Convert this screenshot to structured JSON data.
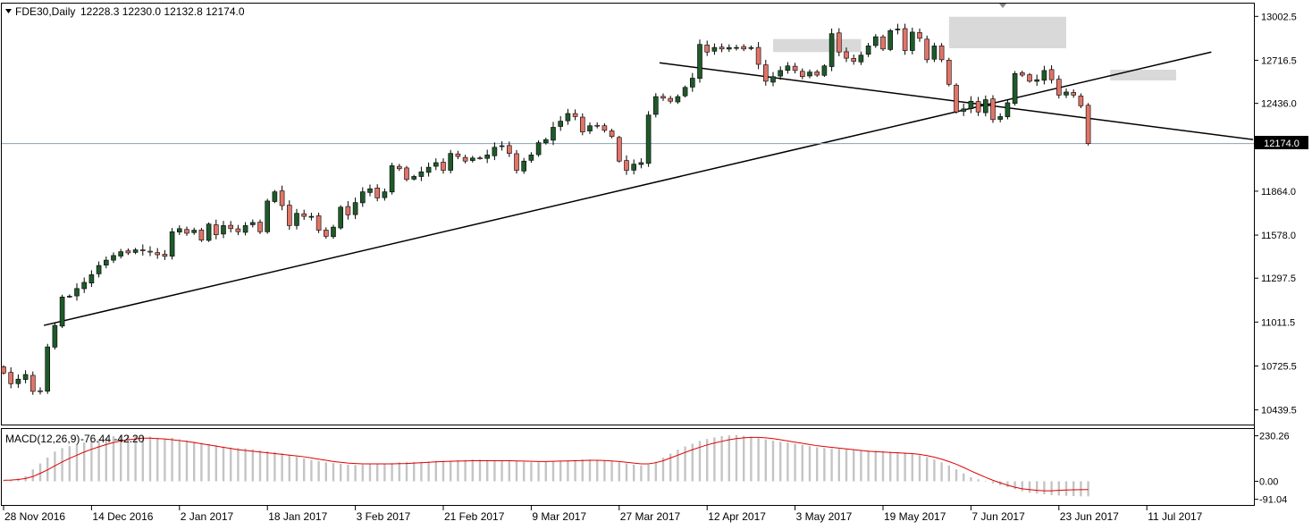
{
  "header": {
    "symbol_label": "FDE30,Daily",
    "ohlc_values": "12228.3 12230.0 12132.8 12174.0"
  },
  "indicator": {
    "label": "MACD(12,26,9)",
    "values": "-76.44 -42.20"
  },
  "colors": {
    "bull_fill": "#1f5a2a",
    "bear_fill": "#e07468",
    "candle_outline": "#000000",
    "trend_line": "#000000",
    "highlight_zone": "#d9d9d9",
    "histogram_bar": "#c4c4c4",
    "signal_line": "#e00000",
    "price_line": "#8aa2b8"
  },
  "chart_data": [
    {
      "type": "candlestick",
      "title": "FDE30,Daily",
      "ohlc_label": "12228.3 12230.0 12132.8 12174.0",
      "y_ticks": [
        "13002.5",
        "12716.5",
        "12436.0",
        "11864.0",
        "11578.0",
        "11297.5",
        "11011.5",
        "10725.5",
        "10439.5"
      ],
      "ylim": [
        10350,
        13080
      ],
      "current_price": 12174.0,
      "current_price_label": "12174.0",
      "x_tick_labels": [
        "28 Nov 2016",
        "14 Dec 2016",
        "2 Jan 2017",
        "18 Jan 2017",
        "3 Feb 2017",
        "21 Feb 2017",
        "9 Mar 2017",
        "27 Mar 2017",
        "12 Apr 2017",
        "3 May 2017",
        "19 May 2017",
        "7 Jun 2017",
        "23 Jun 2017",
        "11 Jul 2017"
      ],
      "x_tick_index": [
        0,
        12,
        24,
        36,
        48,
        60,
        72,
        84,
        96,
        108,
        120,
        132,
        144,
        156
      ],
      "closes": [
        10680,
        10610,
        10640,
        10670,
        10560,
        10560,
        10850,
        10990,
        11175,
        11180,
        11230,
        11270,
        11320,
        11380,
        11415,
        11445,
        11470,
        11462,
        11482,
        11476,
        11470,
        11450,
        11440,
        11600,
        11620,
        11590,
        11610,
        11545,
        11650,
        11580,
        11640,
        11620,
        11600,
        11640,
        11660,
        11600,
        11800,
        11860,
        11770,
        11640,
        11720,
        11700,
        11700,
        11610,
        11570,
        11630,
        11760,
        11710,
        11790,
        11860,
        11880,
        11820,
        11860,
        12030,
        12010,
        11940,
        11960,
        11990,
        12020,
        12050,
        12000,
        12110,
        12090,
        12060,
        12080,
        12080,
        12100,
        12150,
        12160,
        12110,
        12000,
        12060,
        12100,
        12180,
        12200,
        12280,
        12320,
        12370,
        12350,
        12250,
        12290,
        12290,
        12260,
        12220,
        12060,
        12000,
        12040,
        12050,
        12360,
        12480,
        12470,
        12450,
        12480,
        12540,
        12600,
        12820,
        12770,
        12800,
        12790,
        12800,
        12800,
        12790,
        12800,
        12690,
        12580,
        12610,
        12650,
        12680,
        12650,
        12610,
        12640,
        12620,
        12680,
        12890,
        12770,
        12730,
        12710,
        12750,
        12810,
        12870,
        12790,
        12910,
        12920,
        12780,
        12900,
        12860,
        12720,
        12810,
        12720,
        12560,
        12380,
        12400,
        12450,
        12380,
        12460,
        12330,
        12350,
        12440,
        12630,
        12620,
        12580,
        12590,
        12650,
        12590,
        12490,
        12510,
        12490,
        12420,
        12174
      ]
    },
    {
      "type": "bar",
      "title": "MACD(12,26,9)",
      "values_label": "-76.44 -42.20",
      "y_ticks": [
        "230.26",
        "0.00",
        "-91.04"
      ],
      "ylim": [
        -120,
        260
      ],
      "macd": [
        4,
        8,
        14,
        26,
        60,
        90,
        120,
        150,
        168,
        178,
        188,
        196,
        206,
        214,
        220,
        228,
        232,
        234,
        232,
        230,
        226,
        220,
        216,
        220,
        212,
        206,
        200,
        194,
        188,
        182,
        176,
        170,
        168,
        166,
        162,
        156,
        152,
        148,
        142,
        134,
        124,
        116,
        108,
        102,
        96,
        92,
        88,
        84,
        82,
        84,
        86,
        86,
        88,
        92,
        96,
        98,
        98,
        98,
        100,
        102,
        104,
        104,
        106,
        108,
        110,
        110,
        108,
        106,
        104,
        104,
        102,
        98,
        96,
        96,
        98,
        102,
        104,
        106,
        108,
        110,
        110,
        108,
        106,
        102,
        96,
        90,
        84,
        80,
        84,
        100,
        120,
        140,
        160,
        176,
        190,
        204,
        214,
        222,
        228,
        232,
        234,
        230,
        226,
        218,
        212,
        206,
        200,
        196,
        190,
        184,
        178,
        172,
        168,
        166,
        164,
        162,
        160,
        158,
        156,
        154,
        152,
        150,
        148,
        146,
        140,
        132,
        122,
        110,
        96,
        80,
        60,
        40,
        20,
        10,
        0,
        -10,
        -20,
        -30,
        -40,
        -50,
        -58,
        -62,
        -66,
        -70,
        -72,
        -74,
        -75,
        -76,
        -76.44
      ],
      "signal": [
        5,
        6,
        9,
        14,
        24,
        40,
        58,
        78,
        98,
        116,
        132,
        148,
        162,
        174,
        186,
        196,
        204,
        210,
        214,
        218,
        218,
        216,
        214,
        210,
        206,
        202,
        196,
        190,
        184,
        178,
        172,
        166,
        160,
        156,
        152,
        148,
        144,
        140,
        136,
        132,
        128,
        124,
        118,
        112,
        106,
        100,
        96,
        92,
        90,
        88,
        88,
        88,
        88,
        88,
        89,
        90,
        92,
        94,
        96,
        98,
        100,
        101,
        102,
        103,
        104,
        104,
        104,
        104,
        104,
        104,
        103,
        102,
        101,
        100,
        100,
        101,
        102,
        103,
        104,
        105,
        106,
        106,
        105,
        103,
        100,
        96,
        92,
        88,
        88,
        94,
        104,
        118,
        132,
        146,
        160,
        172,
        184,
        194,
        202,
        210,
        216,
        220,
        222,
        222,
        220,
        216,
        210,
        204,
        198,
        192,
        186,
        180,
        176,
        172,
        168,
        164,
        160,
        156,
        152,
        150,
        148,
        146,
        144,
        142,
        140,
        136,
        130,
        122,
        112,
        100,
        86,
        70,
        52,
        36,
        20,
        5,
        -8,
        -20,
        -30,
        -38,
        -42,
        -46,
        -48,
        -48,
        -46,
        -44,
        -43,
        -42.5,
        -42.2
      ]
    }
  ]
}
